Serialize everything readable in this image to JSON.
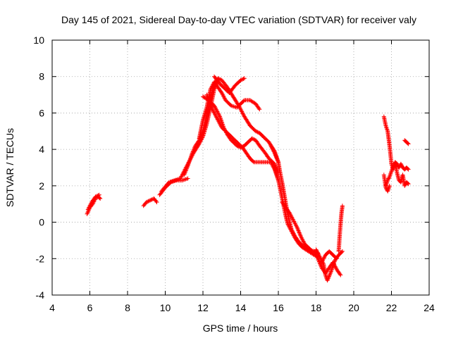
{
  "chart_data": {
    "type": "scatter",
    "title": "Day 145 of 2021, Sidereal Day-to-day VTEC variation (SDTVAR) for receiver valy",
    "xlabel": "GPS time / hours",
    "ylabel": "SDTVAR / TECUs",
    "xlim": [
      4,
      24
    ],
    "ylim": [
      -4,
      10
    ],
    "xticks": [
      "4",
      "6",
      "8",
      "10",
      "12",
      "14",
      "16",
      "18",
      "20",
      "22",
      "24"
    ],
    "yticks": [
      "-4",
      "-2",
      "0",
      "2",
      "4",
      "6",
      "8",
      "10"
    ],
    "grid": true,
    "marker": "plus",
    "series": [
      {
        "name": "SDTVAR",
        "color": "#ff0000",
        "tracks": [
          [
            [
              5.85,
              0.45
            ],
            [
              6.0,
              0.8
            ],
            [
              6.15,
              1.0
            ],
            [
              6.3,
              1.3
            ],
            [
              6.45,
              1.4
            ],
            [
              6.55,
              1.3
            ]
          ],
          [
            [
              5.9,
              0.7
            ],
            [
              6.1,
              1.1
            ],
            [
              6.3,
              1.4
            ],
            [
              6.5,
              1.5
            ]
          ],
          [
            [
              8.85,
              0.9
            ],
            [
              9.0,
              1.1
            ],
            [
              9.2,
              1.2
            ],
            [
              9.4,
              1.3
            ],
            [
              9.55,
              1.1
            ]
          ],
          [
            [
              9.7,
              1.5
            ],
            [
              10.0,
              1.9
            ],
            [
              10.3,
              2.2
            ],
            [
              10.6,
              2.3
            ],
            [
              10.9,
              2.3
            ],
            [
              11.2,
              2.4
            ]
          ],
          [
            [
              9.8,
              1.7
            ],
            [
              10.2,
              2.2
            ],
            [
              10.5,
              2.3
            ],
            [
              10.8,
              2.4
            ],
            [
              11.0,
              2.8
            ],
            [
              11.3,
              3.4
            ],
            [
              11.5,
              3.8
            ],
            [
              11.8,
              4.3
            ],
            [
              12.0,
              4.7
            ],
            [
              12.2,
              5.4
            ],
            [
              12.4,
              6.3
            ],
            [
              12.6,
              7.3
            ],
            [
              12.8,
              7.8
            ]
          ],
          [
            [
              11.0,
              2.6
            ],
            [
              11.2,
              3.1
            ],
            [
              11.4,
              3.7
            ],
            [
              11.6,
              4.2
            ],
            [
              11.8,
              4.5
            ],
            [
              12.0,
              5.0
            ],
            [
              12.2,
              5.8
            ],
            [
              12.4,
              6.8
            ],
            [
              12.6,
              7.6
            ],
            [
              12.8,
              7.9
            ],
            [
              13.0,
              7.8
            ],
            [
              13.3,
              7.4
            ],
            [
              13.6,
              6.9
            ],
            [
              13.9,
              6.4
            ],
            [
              14.2,
              5.8
            ],
            [
              14.5,
              5.3
            ],
            [
              14.8,
              5.0
            ],
            [
              15.0,
              4.9
            ],
            [
              15.2,
              4.7
            ],
            [
              15.5,
              4.4
            ],
            [
              15.8,
              3.9
            ],
            [
              16.0,
              3.3
            ]
          ],
          [
            [
              11.8,
              4.6
            ],
            [
              12.0,
              5.6
            ],
            [
              12.2,
              6.3
            ],
            [
              12.4,
              7.3
            ],
            [
              12.6,
              7.7
            ],
            [
              12.8,
              7.4
            ],
            [
              13.0,
              7.1
            ],
            [
              13.2,
              6.7
            ],
            [
              13.5,
              6.4
            ],
            [
              13.8,
              6.3
            ],
            [
              14.0,
              6.5
            ],
            [
              14.2,
              6.7
            ],
            [
              14.5,
              6.7
            ],
            [
              14.8,
              6.5
            ],
            [
              15.0,
              6.2
            ]
          ],
          [
            [
              12.0,
              6.9
            ],
            [
              12.3,
              6.7
            ],
            [
              12.6,
              6.4
            ],
            [
              12.9,
              5.8
            ],
            [
              13.1,
              5.2
            ],
            [
              13.3,
              4.8
            ],
            [
              13.5,
              4.5
            ],
            [
              13.8,
              4.2
            ],
            [
              14.0,
              4.1
            ],
            [
              14.2,
              4.2
            ],
            [
              14.4,
              4.4
            ],
            [
              14.6,
              4.6
            ],
            [
              14.8,
              4.5
            ],
            [
              15.0,
              4.2
            ],
            [
              15.3,
              3.8
            ],
            [
              15.5,
              3.5
            ],
            [
              15.8,
              3.2
            ],
            [
              16.0,
              2.7
            ]
          ],
          [
            [
              12.6,
              8.0
            ],
            [
              12.9,
              7.6
            ],
            [
              13.1,
              7.4
            ],
            [
              13.4,
              7.1
            ],
            [
              13.7,
              7.5
            ],
            [
              14.0,
              7.8
            ],
            [
              14.2,
              7.9
            ]
          ],
          [
            [
              12.2,
              7.0
            ],
            [
              12.5,
              6.2
            ],
            [
              12.8,
              5.6
            ],
            [
              13.0,
              5.2
            ],
            [
              13.3,
              4.9
            ],
            [
              13.5,
              4.7
            ],
            [
              13.8,
              4.4
            ],
            [
              14.1,
              4.1
            ],
            [
              14.3,
              3.8
            ],
            [
              14.5,
              3.5
            ],
            [
              14.7,
              3.3
            ],
            [
              15.0,
              3.3
            ],
            [
              15.3,
              3.3
            ],
            [
              15.6,
              3.3
            ],
            [
              15.8,
              2.9
            ],
            [
              16.0,
              2.3
            ]
          ],
          [
            [
              15.6,
              4.2
            ],
            [
              15.8,
              3.8
            ],
            [
              16.0,
              3.3
            ],
            [
              16.1,
              2.7
            ],
            [
              16.2,
              2.2
            ],
            [
              16.3,
              1.6
            ],
            [
              16.4,
              1.0
            ],
            [
              16.5,
              0.5
            ],
            [
              16.6,
              0.0
            ],
            [
              16.7,
              -0.4
            ],
            [
              16.9,
              -0.8
            ],
            [
              17.1,
              -1.1
            ],
            [
              17.3,
              -1.3
            ],
            [
              17.6,
              -1.5
            ],
            [
              17.9,
              -1.6
            ],
            [
              18.1,
              -1.7
            ]
          ],
          [
            [
              15.8,
              3.0
            ],
            [
              16.0,
              2.3
            ],
            [
              16.1,
              1.8
            ],
            [
              16.2,
              1.3
            ],
            [
              16.3,
              0.8
            ],
            [
              16.4,
              0.3
            ],
            [
              16.5,
              -0.1
            ],
            [
              16.7,
              -0.5
            ],
            [
              16.9,
              -0.9
            ],
            [
              17.1,
              -1.2
            ],
            [
              17.3,
              -1.4
            ],
            [
              17.6,
              -1.6
            ],
            [
              17.9,
              -1.8
            ],
            [
              18.1,
              -1.9
            ]
          ],
          [
            [
              16.2,
              1.1
            ],
            [
              16.4,
              0.8
            ],
            [
              16.6,
              0.5
            ],
            [
              16.8,
              0.1
            ],
            [
              17.0,
              -0.3
            ],
            [
              17.2,
              -0.8
            ],
            [
              17.4,
              -1.2
            ],
            [
              17.6,
              -1.4
            ],
            [
              17.8,
              -1.6
            ]
          ],
          [
            [
              17.9,
              -1.6
            ],
            [
              18.1,
              -2.0
            ],
            [
              18.3,
              -2.5
            ],
            [
              18.5,
              -2.8
            ],
            [
              18.7,
              -2.5
            ],
            [
              18.9,
              -2.2
            ],
            [
              19.1,
              -2.6
            ],
            [
              19.3,
              -2.9
            ]
          ],
          [
            [
              18.0,
              -1.5
            ],
            [
              18.2,
              -1.9
            ],
            [
              18.4,
              -2.3
            ],
            [
              18.5,
              -2.9
            ],
            [
              18.6,
              -3.2
            ],
            [
              18.8,
              -2.7
            ],
            [
              19.0,
              -2.1
            ],
            [
              19.2,
              -1.8
            ],
            [
              19.4,
              -1.6
            ]
          ],
          [
            [
              18.3,
              -2.2
            ],
            [
              18.5,
              -1.8
            ],
            [
              18.7,
              -1.6
            ],
            [
              18.9,
              -1.8
            ],
            [
              19.1,
              -2.0
            ]
          ],
          [
            [
              19.2,
              -1.6
            ],
            [
              19.25,
              -0.8
            ],
            [
              19.3,
              -0.1
            ],
            [
              19.35,
              0.5
            ],
            [
              19.4,
              0.9
            ]
          ],
          [
            [
              21.6,
              5.8
            ],
            [
              21.7,
              5.3
            ],
            [
              21.8,
              5.0
            ],
            [
              21.85,
              4.6
            ],
            [
              21.9,
              4.2
            ],
            [
              21.95,
              3.7
            ],
            [
              22.0,
              3.2
            ],
            [
              22.1,
              2.9
            ],
            [
              22.2,
              3.2
            ],
            [
              22.3,
              2.7
            ],
            [
              22.4,
              2.3
            ],
            [
              22.5,
              2.2
            ],
            [
              22.6,
              2.6
            ],
            [
              22.7,
              2.0
            ],
            [
              22.8,
              2.2
            ],
            [
              22.9,
              2.1
            ]
          ],
          [
            [
              21.7,
              2.0
            ],
            [
              21.8,
              2.3
            ],
            [
              21.9,
              2.5
            ],
            [
              22.0,
              2.8
            ],
            [
              22.1,
              3.1
            ],
            [
              22.2,
              3.3
            ],
            [
              22.3,
              3.2
            ],
            [
              22.4,
              3.0
            ],
            [
              22.5,
              3.2
            ],
            [
              22.6,
              3.0
            ],
            [
              22.7,
              2.9
            ],
            [
              22.8,
              3.0
            ],
            [
              22.9,
              2.9
            ]
          ],
          [
            [
              21.6,
              2.6
            ],
            [
              21.7,
              1.9
            ],
            [
              21.8,
              1.7
            ],
            [
              21.9,
              2.0
            ]
          ],
          [
            [
              22.7,
              4.5
            ],
            [
              22.8,
              4.4
            ],
            [
              22.9,
              4.3
            ]
          ]
        ]
      }
    ]
  }
}
